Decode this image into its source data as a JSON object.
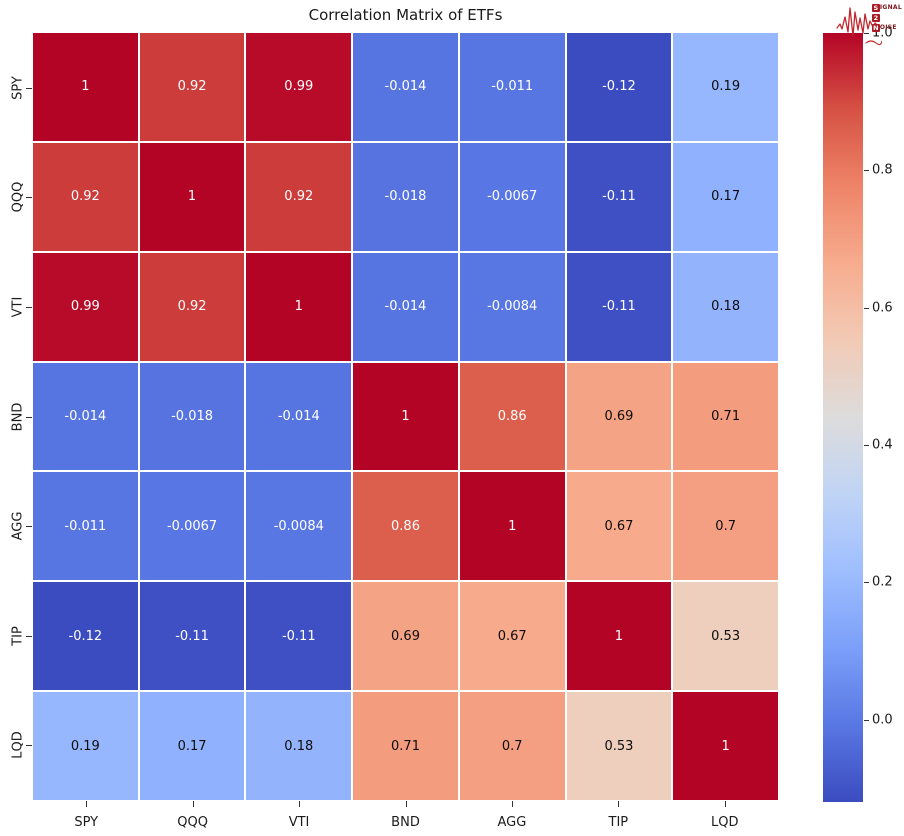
{
  "page": {
    "background": "#ffffff"
  },
  "header": {
    "title": "Correlation Matrix of ETFs"
  },
  "logo": {
    "line1_initial": "S",
    "line1_rest": "IGNAL",
    "line2_initial": "2",
    "line2_rest": "",
    "line3_initial": "N",
    "line3_rest": "OISE",
    "accent_color": "#a91c26",
    "waveform_color": "#c1272d"
  },
  "chart_data": {
    "type": "heatmap",
    "title": "Correlation Matrix of ETFs",
    "x_labels": [
      "SPY",
      "QQQ",
      "VTI",
      "BND",
      "AGG",
      "TIP",
      "LQD"
    ],
    "y_labels": [
      "SPY",
      "QQQ",
      "VTI",
      "BND",
      "AGG",
      "TIP",
      "LQD"
    ],
    "matrix": [
      [
        1,
        0.92,
        0.99,
        -0.014,
        -0.011,
        -0.12,
        0.19
      ],
      [
        0.92,
        1,
        0.92,
        -0.018,
        -0.0067,
        -0.11,
        0.17
      ],
      [
        0.99,
        0.92,
        1,
        -0.014,
        -0.0084,
        -0.11,
        0.18
      ],
      [
        -0.014,
        -0.018,
        -0.014,
        1,
        0.86,
        0.69,
        0.71
      ],
      [
        -0.011,
        -0.0067,
        -0.0084,
        0.86,
        1,
        0.67,
        0.7
      ],
      [
        -0.12,
        -0.11,
        -0.11,
        0.69,
        0.67,
        1,
        0.53
      ],
      [
        0.19,
        0.17,
        0.18,
        0.71,
        0.7,
        0.53,
        1
      ]
    ],
    "cell_colors": [
      [
        "#b40426",
        "#cc3c3b",
        "#b70b29",
        "#5775e1",
        "#5876e2",
        "#3b4cc0",
        "#96b7fe"
      ],
      [
        "#cc3c3b",
        "#b40426",
        "#cc3c3b",
        "#5673e0",
        "#5977e4",
        "#3e50c3",
        "#90b1fd"
      ],
      [
        "#b70b29",
        "#cc3c3b",
        "#b40426",
        "#5775e1",
        "#5977e3",
        "#3e50c3",
        "#93b4fd"
      ],
      [
        "#5775e1",
        "#5673e0",
        "#5775e1",
        "#b40426",
        "#dc5e4d",
        "#f5a385",
        "#f39c7e"
      ],
      [
        "#5876e2",
        "#5977e4",
        "#5977e3",
        "#dc5e4d",
        "#b40426",
        "#f7aa8c",
        "#f49f82"
      ],
      [
        "#3b4cc0",
        "#3e50c3",
        "#3e50c3",
        "#f5a385",
        "#f7aa8c",
        "#b40426",
        "#eecebd"
      ],
      [
        "#96b7fe",
        "#90b1fd",
        "#93b4fd",
        "#f39c7e",
        "#f49f82",
        "#eecebd",
        "#b40426"
      ]
    ],
    "colormap": "coolwarm",
    "vmin": -0.12,
    "vmax": 1.0,
    "grid_line_color": "#ffffff",
    "annotation_colors": {
      "dark_cells": "#ffffff",
      "light_cells": "#0d0d0d"
    },
    "colorbar": {
      "position": "right",
      "ticks": [
        1.0,
        0.8,
        0.6,
        0.4,
        0.2,
        0.0
      ],
      "tick_labels": [
        "1.0",
        "0.8",
        "0.6",
        "0.4",
        "0.2",
        "0.0"
      ],
      "gradient_stops_top_to_bottom": [
        "#b40426",
        "#d65244",
        "#ee8468",
        "#f7ac8e",
        "#f2cab5",
        "#dddcdc",
        "#c0d4f5",
        "#9ebeff",
        "#7b9ff9",
        "#5977e3",
        "#3b4cc0"
      ]
    }
  }
}
